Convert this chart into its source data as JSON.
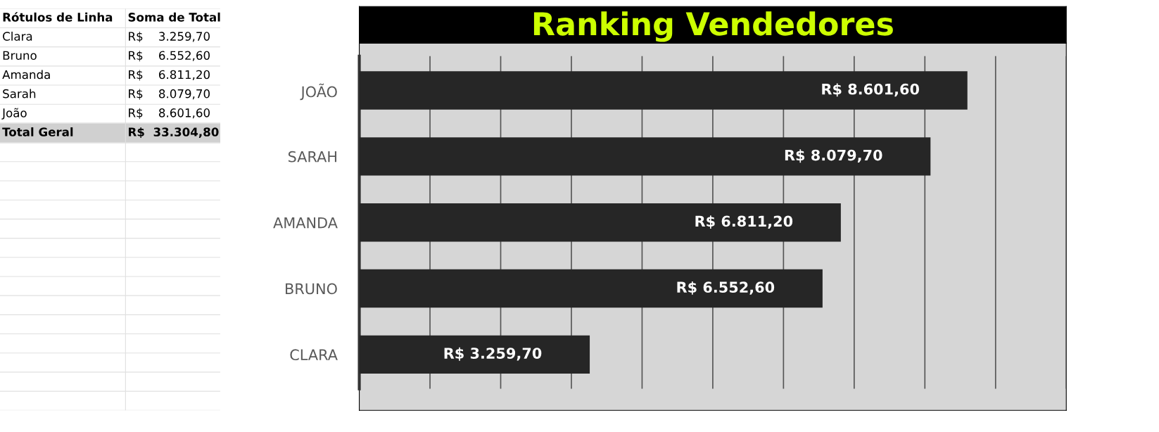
{
  "chart_data": [
    {
      "type": "other",
      "annotations": [
        "Rótulos de Linha",
        "Soma de Total",
        "Clara",
        "R$    3.259,70",
        "Bruno",
        "R$    6.552,60",
        "Amanda",
        "R$    6.811,20",
        "Sarah",
        "R$    8.079,70",
        "João",
        "R$    8.601,60",
        "Total Geral",
        "R$  33.304,80"
      ]
    },
    {
      "type": "bar",
      "orientation": "horizontal",
      "title": "Ranking Vendedores",
      "categories": [
        "JOÃO",
        "SARAH",
        "AMANDA",
        "BRUNO",
        "CLARA"
      ],
      "values": [
        8601.6,
        8079.7,
        6811.2,
        6552.6,
        3259.7
      ],
      "value_labels": [
        "R$ 8.601,60",
        "R$ 8.079,70",
        "R$ 6.811,20",
        "R$ 6.552,60",
        "R$ 3.259,70"
      ],
      "color": "#262626",
      "xlim": [
        0,
        10000
      ],
      "xticks": [
        {
          "value": 0,
          "label": null
        },
        {
          "value": 1000,
          "label": null
        },
        {
          "value": 2000,
          "label": null
        },
        {
          "value": 3000,
          "label": null
        },
        {
          "value": 4000,
          "label": null
        },
        {
          "value": 5000,
          "label": null
        },
        {
          "value": 6000,
          "label": null
        },
        {
          "value": 7000,
          "label": null
        },
        {
          "value": 8000,
          "label": null
        },
        {
          "value": 9000,
          "label": null
        },
        {
          "value": 10000,
          "label": null
        }
      ],
      "grid": "x",
      "tick_labels": "y"
    }
  ]
}
